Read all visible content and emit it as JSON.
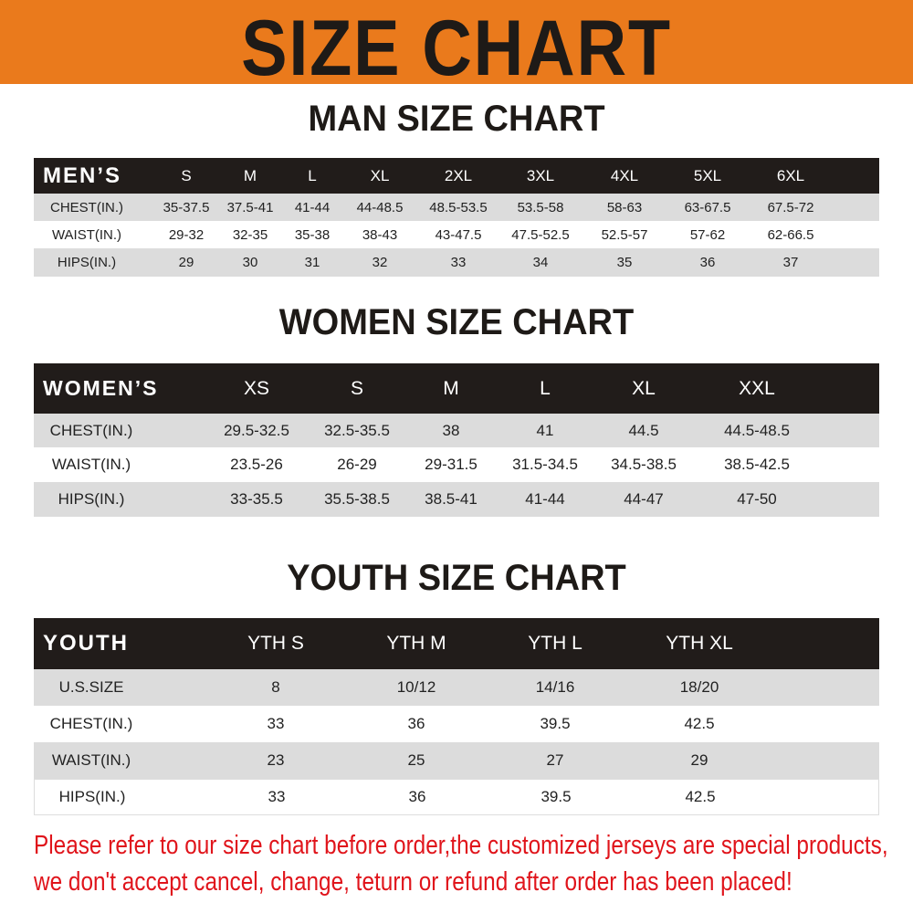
{
  "banner": {
    "title": "SIZE CHART",
    "color": "#ea7a1c"
  },
  "men": {
    "title": "MAN SIZE CHART",
    "header_label": "MEN’S",
    "sizes": [
      "S",
      "M",
      "L",
      "XL",
      "2XL",
      "3XL",
      "4XL",
      "5XL",
      "6XL"
    ],
    "rows": [
      {
        "label": "CHEST(IN.)",
        "values": [
          "35-37.5",
          "37.5-41",
          "41-44",
          "44-48.5",
          "48.5-53.5",
          "53.5-58",
          "58-63",
          "63-67.5",
          "67.5-72"
        ]
      },
      {
        "label": "WAIST(IN.)",
        "values": [
          "29-32",
          "32-35",
          "35-38",
          "38-43",
          "43-47.5",
          "47.5-52.5",
          "52.5-57",
          "57-62",
          "62-66.5"
        ]
      },
      {
        "label": "HIPS(IN.)",
        "values": [
          "29",
          "30",
          "31",
          "32",
          "33",
          "34",
          "35",
          "36",
          "37"
        ]
      }
    ]
  },
  "women": {
    "title": "WOMEN SIZE CHART",
    "header_label": "WOMEN’S",
    "sizes": [
      "XS",
      "S",
      "M",
      "L",
      "XL",
      "XXL"
    ],
    "rows": [
      {
        "label": "CHEST(IN.)",
        "values": [
          "29.5-32.5",
          "32.5-35.5",
          "38",
          "41",
          "44.5",
          "44.5-48.5"
        ]
      },
      {
        "label": "WAIST(IN.)",
        "values": [
          "23.5-26",
          "26-29",
          "29-31.5",
          "31.5-34.5",
          "34.5-38.5",
          "38.5-42.5"
        ]
      },
      {
        "label": "HIPS(IN.)",
        "values": [
          "33-35.5",
          "35.5-38.5",
          "38.5-41",
          "41-44",
          "44-47",
          "47-50"
        ]
      }
    ]
  },
  "youth": {
    "title": "YOUTH SIZE CHART",
    "header_label": "YOUTH",
    "sizes": [
      "YTH S",
      "YTH M",
      "YTH L",
      "YTH XL"
    ],
    "rows": [
      {
        "label": "U.S.SIZE",
        "values": [
          "8",
          "10/12",
          "14/16",
          "18/20"
        ]
      },
      {
        "label": "CHEST(IN.)",
        "values": [
          "33",
          "36",
          "39.5",
          "42.5"
        ]
      },
      {
        "label": "WAIST(IN.)",
        "values": [
          "23",
          "25",
          "27",
          "29"
        ]
      },
      {
        "label": "HIPS(IN.)",
        "values": [
          "33",
          "36",
          "39.5",
          "42.5"
        ]
      }
    ]
  },
  "notice": {
    "line1": "Please refer to our size chart before order,the customized jerseys are special products,",
    "line2": "we don't accept cancel, change, teturn or refund after order has been placed!",
    "color": "#e0141b"
  }
}
